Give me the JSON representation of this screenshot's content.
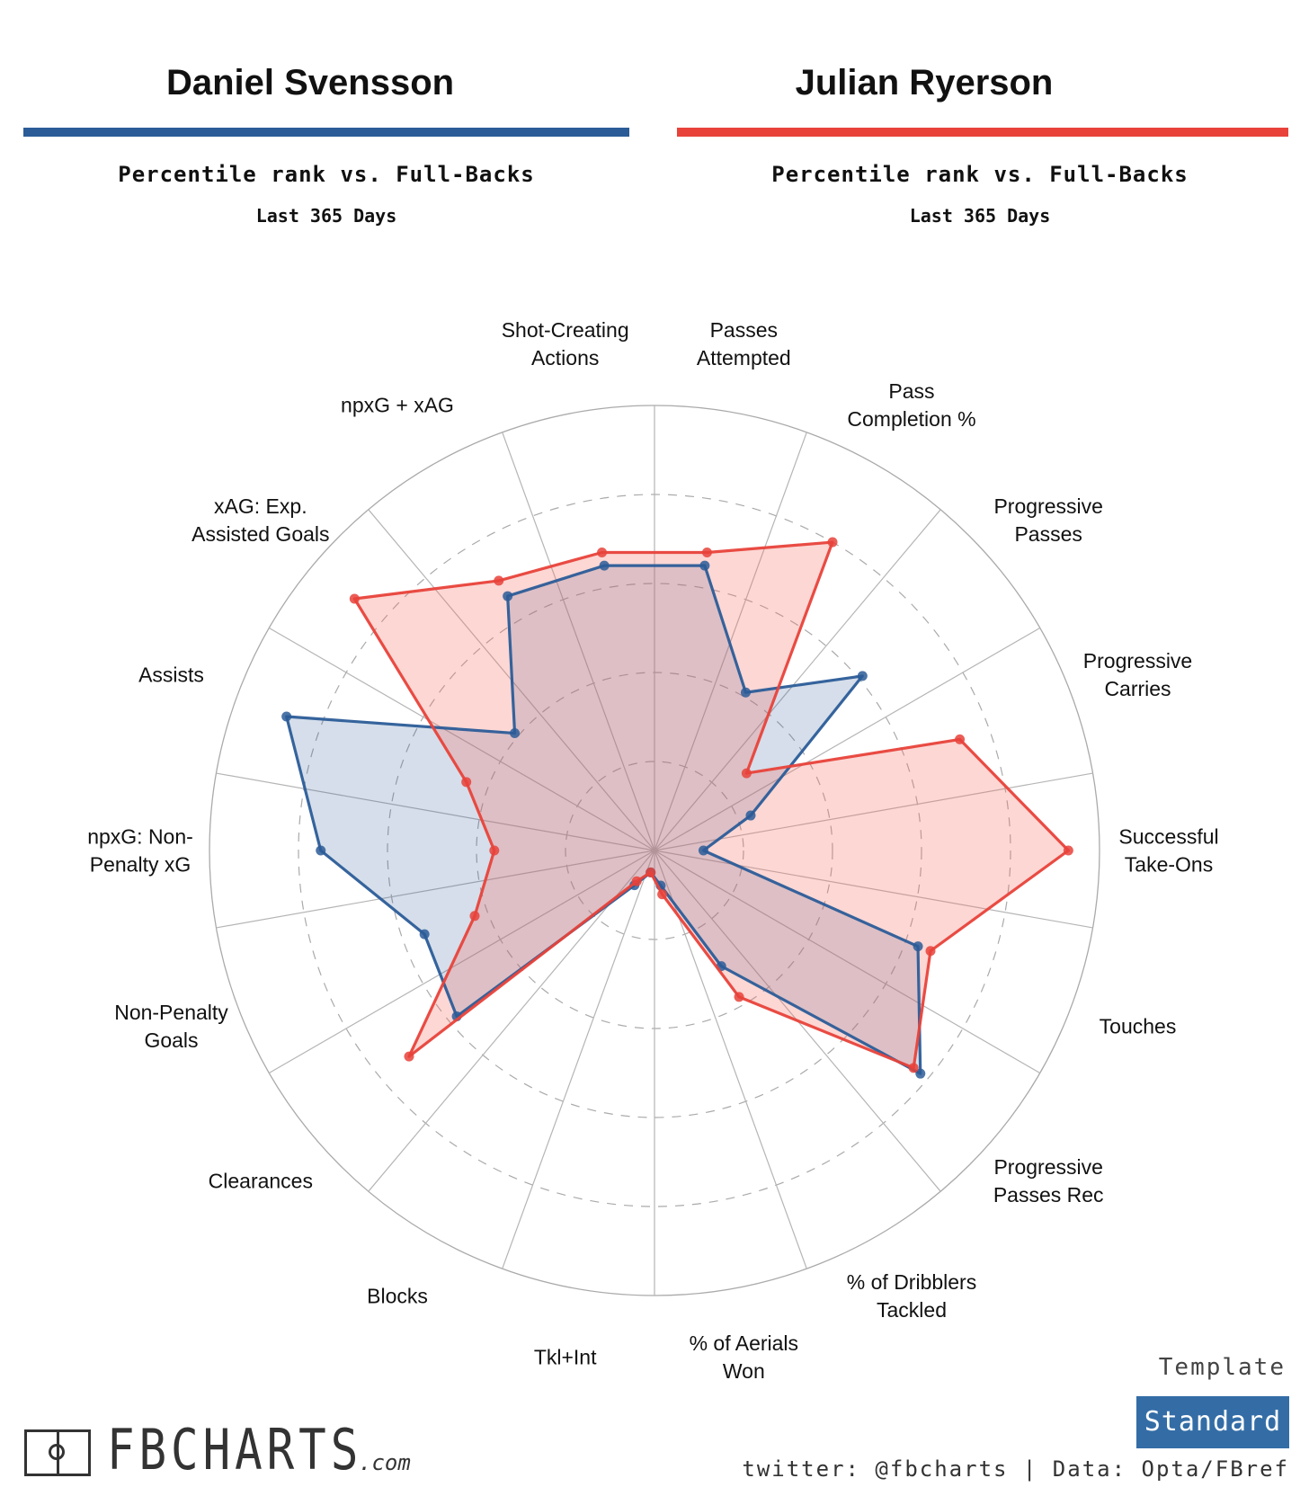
{
  "players": [
    {
      "name": "Daniel Svensson",
      "color": "#2b5c98",
      "subtitle": "Percentile rank vs. Full-Backs",
      "period": "Last 365 Days"
    },
    {
      "name": "Julian Ryerson",
      "color": "#e8423a",
      "subtitle": "Percentile rank vs. Full-Backs",
      "period": "Last 365 Days"
    }
  ],
  "chart_data": {
    "type": "radar",
    "title": "",
    "range": [
      0,
      100
    ],
    "rings": [
      20,
      40,
      60,
      80,
      100
    ],
    "categories": [
      "Passes Attempted",
      "Pass Completion %",
      "Progressive Passes",
      "Progressive Carries",
      "Successful Take-Ons",
      "Touches",
      "Progressive Passes Rec",
      "% of Dribblers Tackled",
      "% of Aerials Won",
      "Tkl+Int",
      "Blocks",
      "Clearances",
      "Non-Penalty Goals",
      "npxG: Non-Penalty xG",
      "Assists",
      "xAG: Exp. Assisted Goals",
      "npxG + xAG",
      "Shot-Creating Actions"
    ],
    "category_lines": [
      [
        "Passes",
        "Attempted"
      ],
      [
        "Pass",
        "Completion %"
      ],
      [
        "Progressive",
        "Passes"
      ],
      [
        "Progressive",
        "Carries"
      ],
      [
        "Successful",
        "Take-Ons"
      ],
      [
        "Touches"
      ],
      [
        "Progressive",
        "Passes Rec"
      ],
      [
        "% of Dribblers",
        "Tackled"
      ],
      [
        "% of Aerials",
        "Won"
      ],
      [
        "Tkl+Int"
      ],
      [
        "Blocks"
      ],
      [
        "Clearances"
      ],
      [
        "Non-Penalty",
        "Goals"
      ],
      [
        "npxG: Non-",
        "Penalty xG"
      ],
      [
        "Assists"
      ],
      [
        "xAG: Exp.",
        "Assisted Goals"
      ],
      [
        "npxG + xAG"
      ],
      [
        "Shot-Creating",
        "Actions"
      ]
    ],
    "series": [
      {
        "name": "Daniel Svensson",
        "color": "#2b5c98",
        "values": [
          65,
          41,
          61,
          23,
          11,
          63,
          78,
          30,
          8,
          5,
          9,
          58,
          55,
          75,
          88,
          41,
          66,
          65
        ]
      },
      {
        "name": "Julian Ryerson",
        "color": "#e8423a",
        "values": [
          68,
          80,
          27,
          73,
          93,
          66,
          76,
          38,
          10,
          5,
          8,
          72,
          43,
          36,
          45,
          88,
          70,
          68
        ]
      }
    ]
  },
  "logo": {
    "text": "FBCHARTS",
    "domain": ".com"
  },
  "template": {
    "label": "Template",
    "value": "Standard"
  },
  "credits": "twitter: @fbcharts | Data: Opta/FBref"
}
